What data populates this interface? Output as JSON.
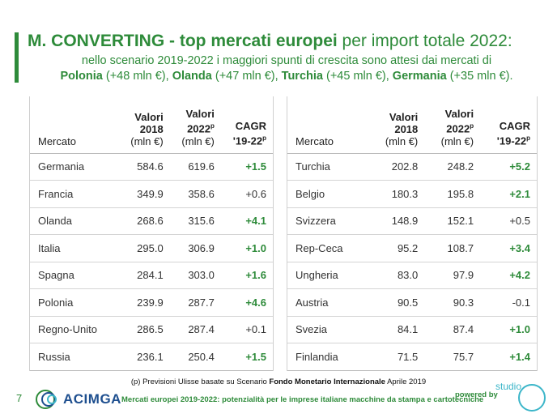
{
  "title": {
    "bold": "M. CONVERTING - top mercati europei",
    "rest": " per import totale 2022:"
  },
  "subtitle": {
    "intro": "nello scenario 2019-2022 i maggiori spunti di crescita sono attesi dai mercati di",
    "m1_name": "Polonia",
    "m1_val": " (+48 mln €), ",
    "m2_name": "Olanda",
    "m2_val": " (+47 mln €), ",
    "m3_name": "Turchia",
    "m3_val": " (+45 mln €), ",
    "m4_name": "Germania",
    "m4_val": " (+35 mln €)."
  },
  "headers": {
    "mercato": "Mercato",
    "v2018_a": "Valori",
    "v2018_b": "2018",
    "v2018_c": "(mln €)",
    "v2022_a": "Valori",
    "v2022_b": "2022",
    "v2022_sup": "p",
    "v2022_c": "(mln €)",
    "cagr_a": "CAGR",
    "cagr_b": "'19-22",
    "cagr_sup": "p"
  },
  "left_table": [
    {
      "mercato": "Germania",
      "v2018": "584.6",
      "v2022": "619.6",
      "cagr": "+1.5",
      "highlight": true
    },
    {
      "mercato": "Francia",
      "v2018": "349.9",
      "v2022": "358.6",
      "cagr": "+0.6",
      "highlight": false
    },
    {
      "mercato": "Olanda",
      "v2018": "268.6",
      "v2022": "315.6",
      "cagr": "+4.1",
      "highlight": true
    },
    {
      "mercato": "Italia",
      "v2018": "295.0",
      "v2022": "306.9",
      "cagr": "+1.0",
      "highlight": true
    },
    {
      "mercato": "Spagna",
      "v2018": "284.1",
      "v2022": "303.0",
      "cagr": "+1.6",
      "highlight": true
    },
    {
      "mercato": "Polonia",
      "v2018": "239.9",
      "v2022": "287.7",
      "cagr": "+4.6",
      "highlight": true
    },
    {
      "mercato": "Regno-Unito",
      "v2018": "286.5",
      "v2022": "287.4",
      "cagr": "+0.1",
      "highlight": false
    },
    {
      "mercato": "Russia",
      "v2018": "236.1",
      "v2022": "250.4",
      "cagr": "+1.5",
      "highlight": true
    }
  ],
  "right_table": [
    {
      "mercato": "Turchia",
      "v2018": "202.8",
      "v2022": "248.2",
      "cagr": "+5.2",
      "highlight": true
    },
    {
      "mercato": "Belgio",
      "v2018": "180.3",
      "v2022": "195.8",
      "cagr": "+2.1",
      "highlight": true
    },
    {
      "mercato": "Svizzera",
      "v2018": "148.9",
      "v2022": "152.1",
      "cagr": "+0.5",
      "highlight": false
    },
    {
      "mercato": "Rep-Ceca",
      "v2018": "95.2",
      "v2022": "108.7",
      "cagr": "+3.4",
      "highlight": true
    },
    {
      "mercato": "Ungheria",
      "v2018": "83.0",
      "v2022": "97.9",
      "cagr": "+4.2",
      "highlight": true
    },
    {
      "mercato": "Austria",
      "v2018": "90.5",
      "v2022": "90.3",
      "cagr": "-0.1",
      "highlight": false
    },
    {
      "mercato": "Svezia",
      "v2018": "84.1",
      "v2022": "87.4",
      "cagr": "+1.0",
      "highlight": true
    },
    {
      "mercato": "Finlandia",
      "v2018": "71.5",
      "v2022": "75.7",
      "cagr": "+1.4",
      "highlight": true
    }
  ],
  "note": {
    "pre": "(p) Previsioni Ulisse basate su Scenario ",
    "bold": "Fondo Monetario  Internazionale",
    "post": " Aprile 2019"
  },
  "footer": {
    "page_number": "7",
    "logo": "ACIMGA",
    "text": "Mercati europei 2019-2022: potenzialità per le imprese italiane macchine da stampa e cartotecniche",
    "powered_by": "powered by",
    "studio": "studio"
  },
  "colors": {
    "accent": "#2e8b3a",
    "logo_blue": "#1e4f8f",
    "studio": "#3cb6c9"
  }
}
